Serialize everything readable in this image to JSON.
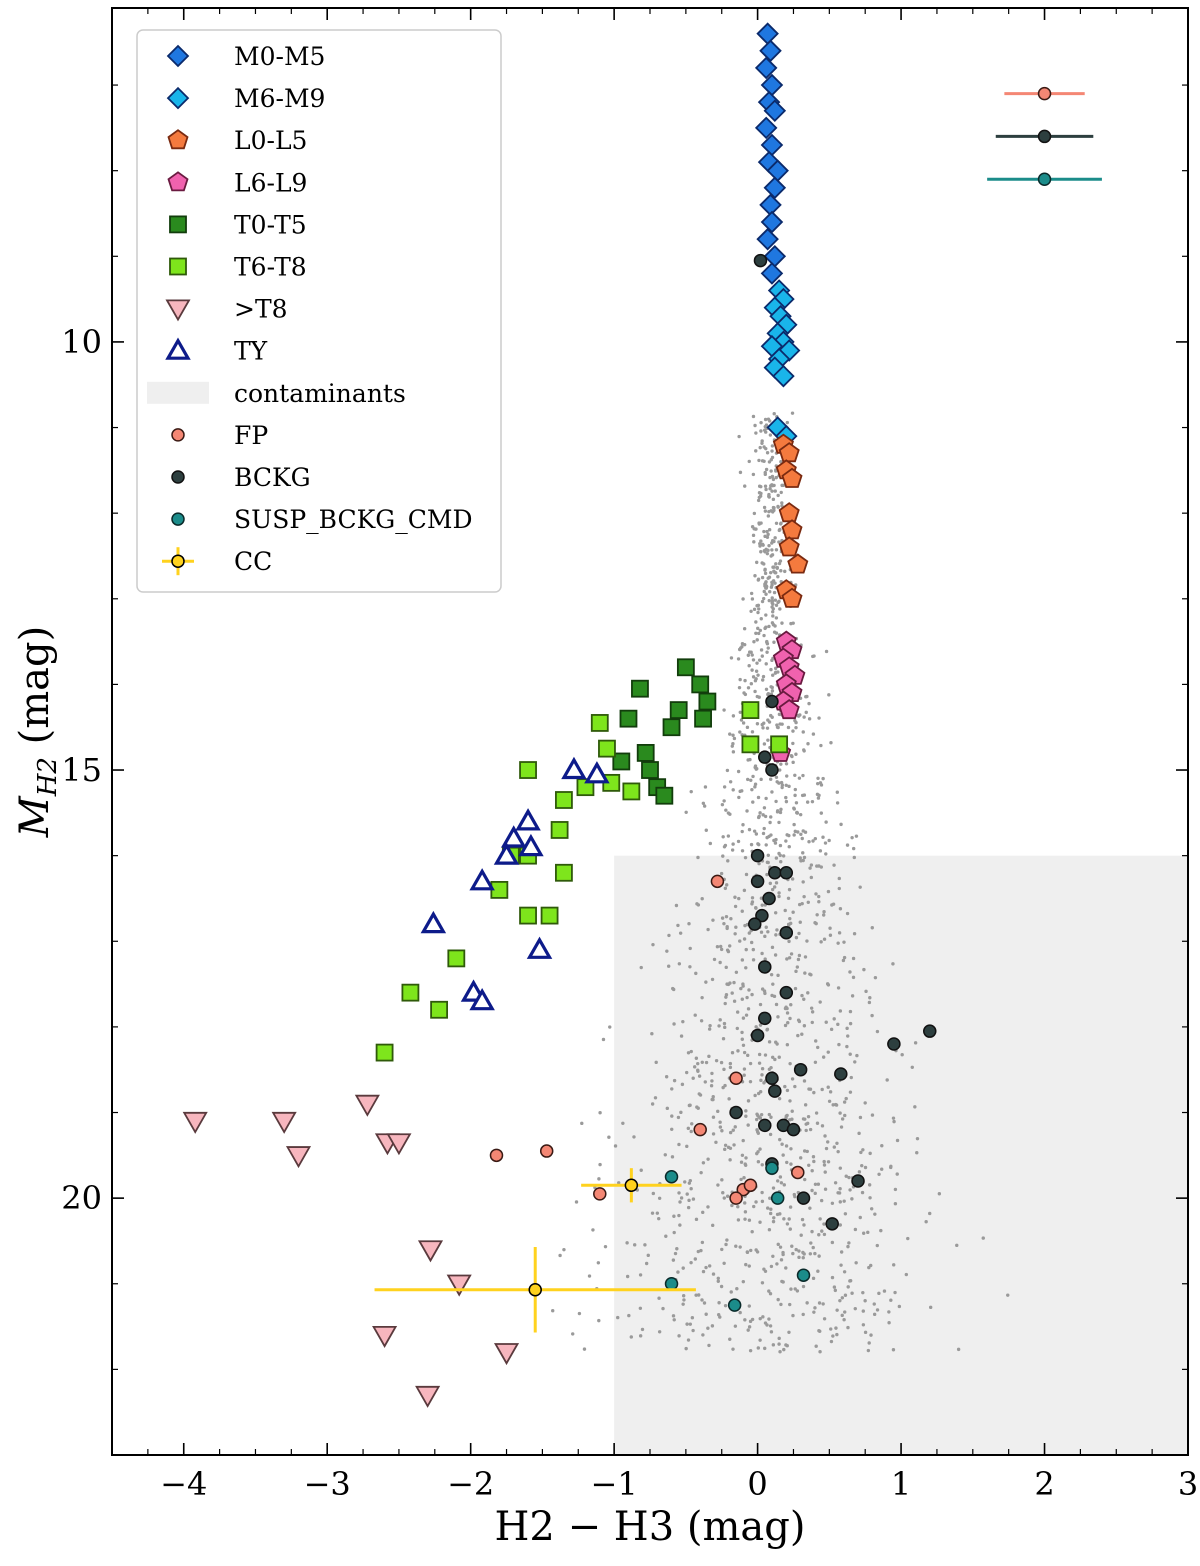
{
  "chart_data": {
    "type": "scatter",
    "xlabel": "H2 − H3 (mag)",
    "ylabel": "M_H2 (mag)",
    "xlim": [
      -4.5,
      3
    ],
    "ylim": [
      23.0,
      6.1
    ],
    "y_inverted": true,
    "x_ticks": [
      -4,
      -3,
      -2,
      -1,
      0,
      1,
      2,
      3
    ],
    "x_tick_labels": [
      "−4",
      "−3",
      "−2",
      "−1",
      "0",
      "1",
      "2",
      "3"
    ],
    "y_ticks": [
      10,
      15,
      20
    ],
    "y_tick_labels": [
      "10",
      "15",
      "20"
    ],
    "grid": false,
    "legend_position": "top-left",
    "contaminant_region": {
      "label": "contaminants",
      "x": [
        -1.0,
        3.0
      ],
      "y": [
        16.0,
        23.0
      ]
    },
    "error_bar_reference": [
      {
        "series": "FP",
        "x": 2.0,
        "y": 7.1,
        "xerr": 0.28
      },
      {
        "series": "BCKG",
        "x": 2.0,
        "y": 7.6,
        "xerr": 0.34
      },
      {
        "series": "SUSP_BCKG_CMD",
        "x": 2.0,
        "y": 8.1,
        "xerr": 0.4
      }
    ],
    "series": [
      {
        "name": "M0-M5",
        "marker": "diamond",
        "color": "#1f77e0",
        "edge": "#0b2a6b",
        "points": [
          [
            0.07,
            6.4
          ],
          [
            0.09,
            6.6
          ],
          [
            0.06,
            6.8
          ],
          [
            0.1,
            7.0
          ],
          [
            0.08,
            7.2
          ],
          [
            0.12,
            7.3
          ],
          [
            0.06,
            7.5
          ],
          [
            0.1,
            7.7
          ],
          [
            0.08,
            7.9
          ],
          [
            0.14,
            8.0
          ],
          [
            0.12,
            8.2
          ],
          [
            0.09,
            8.4
          ],
          [
            0.1,
            8.6
          ],
          [
            0.07,
            8.8
          ],
          [
            0.12,
            9.0
          ],
          [
            0.1,
            9.2
          ]
        ]
      },
      {
        "name": "M6-M9",
        "marker": "diamond",
        "color": "#19b5ea",
        "edge": "#0b2a6b",
        "points": [
          [
            0.15,
            9.4
          ],
          [
            0.18,
            9.5
          ],
          [
            0.12,
            9.6
          ],
          [
            0.16,
            9.7
          ],
          [
            0.2,
            9.8
          ],
          [
            0.14,
            9.9
          ],
          [
            0.18,
            10.0
          ],
          [
            0.1,
            10.05
          ],
          [
            0.22,
            10.1
          ],
          [
            0.15,
            10.2
          ],
          [
            0.12,
            10.3
          ],
          [
            0.18,
            10.4
          ],
          [
            0.14,
            11.0
          ],
          [
            0.2,
            11.1
          ]
        ]
      },
      {
        "name": "L0-L5",
        "marker": "pentagon",
        "color": "#f47a3e",
        "edge": "#7a2a10",
        "points": [
          [
            0.18,
            11.2
          ],
          [
            0.22,
            11.3
          ],
          [
            0.2,
            11.5
          ],
          [
            0.24,
            11.6
          ],
          [
            0.22,
            12.0
          ],
          [
            0.24,
            12.2
          ],
          [
            0.22,
            12.4
          ],
          [
            0.28,
            12.6
          ],
          [
            0.2,
            12.9
          ],
          [
            0.24,
            13.0
          ]
        ]
      },
      {
        "name": "L6-L9",
        "marker": "pentagon",
        "color": "#f062ae",
        "edge": "#6a1a40",
        "points": [
          [
            0.2,
            13.5
          ],
          [
            0.24,
            13.6
          ],
          [
            0.18,
            13.7
          ],
          [
            0.22,
            13.8
          ],
          [
            0.26,
            13.9
          ],
          [
            0.2,
            14.0
          ],
          [
            0.24,
            14.1
          ],
          [
            0.18,
            14.2
          ],
          [
            0.22,
            14.3
          ],
          [
            0.16,
            14.8
          ]
        ]
      },
      {
        "name": "T0-T5",
        "marker": "square",
        "color": "#2a8a1e",
        "edge": "#123d0c",
        "points": [
          [
            -0.5,
            13.8
          ],
          [
            -0.82,
            14.05
          ],
          [
            -0.4,
            14.0
          ],
          [
            -0.35,
            14.2
          ],
          [
            -0.38,
            14.4
          ],
          [
            -0.55,
            14.3
          ],
          [
            -0.6,
            14.5
          ],
          [
            -0.78,
            14.8
          ],
          [
            -0.9,
            14.4
          ],
          [
            -0.95,
            14.9
          ],
          [
            -0.75,
            15.0
          ],
          [
            -0.7,
            15.2
          ],
          [
            -0.65,
            15.3
          ]
        ]
      },
      {
        "name": "T6-T8",
        "marker": "square",
        "color": "#7ee51c",
        "edge": "#2f5a0a",
        "points": [
          [
            -1.1,
            14.45
          ],
          [
            -1.05,
            14.75
          ],
          [
            -1.02,
            15.15
          ],
          [
            -0.88,
            15.25
          ],
          [
            -1.2,
            15.2
          ],
          [
            -1.35,
            15.35
          ],
          [
            -1.6,
            15.0
          ],
          [
            -1.38,
            15.7
          ],
          [
            -1.35,
            16.2
          ],
          [
            -1.6,
            16.0
          ],
          [
            -1.72,
            16.0
          ],
          [
            -1.8,
            16.4
          ],
          [
            -1.6,
            16.7
          ],
          [
            -1.45,
            16.7
          ],
          [
            -2.1,
            17.2
          ],
          [
            -2.22,
            17.8
          ],
          [
            -2.42,
            17.6
          ],
          [
            -2.6,
            18.3
          ],
          [
            -0.05,
            14.3
          ],
          [
            -0.05,
            14.7
          ],
          [
            0.15,
            14.7
          ]
        ]
      },
      {
        "name": ">T8",
        "marker": "triangle-down",
        "color": "#f7b6be",
        "edge": "#5a3a3d",
        "points": [
          [
            -3.92,
            19.1
          ],
          [
            -3.3,
            19.1
          ],
          [
            -3.2,
            19.5
          ],
          [
            -2.72,
            18.9
          ],
          [
            -2.58,
            19.35
          ],
          [
            -2.5,
            19.35
          ],
          [
            -2.28,
            20.6
          ],
          [
            -2.08,
            21.0
          ],
          [
            -2.6,
            21.6
          ],
          [
            -1.75,
            21.8
          ],
          [
            -2.3,
            22.3
          ]
        ]
      },
      {
        "name": "TY",
        "marker": "triangle-up",
        "color": "#ffffff",
        "edge": "#0d1b8a",
        "points": [
          [
            -1.28,
            15.0
          ],
          [
            -1.12,
            15.05
          ],
          [
            -1.6,
            15.6
          ],
          [
            -1.7,
            15.8
          ],
          [
            -1.58,
            15.9
          ],
          [
            -1.75,
            16.0
          ],
          [
            -1.92,
            16.3
          ],
          [
            -2.26,
            16.8
          ],
          [
            -1.52,
            17.1
          ],
          [
            -1.98,
            17.6
          ],
          [
            -1.92,
            17.7
          ]
        ]
      },
      {
        "name": "FP",
        "marker": "circle",
        "color": "#f48774",
        "edge": "#3a1a14",
        "points": [
          [
            -0.28,
            16.3
          ],
          [
            -0.15,
            18.6
          ],
          [
            -0.4,
            19.2
          ],
          [
            -1.82,
            19.5
          ],
          [
            -1.47,
            19.45
          ],
          [
            -1.1,
            19.95
          ],
          [
            -0.1,
            19.9
          ],
          [
            -0.05,
            19.85
          ],
          [
            0.28,
            19.7
          ],
          [
            -0.15,
            20.0
          ]
        ]
      },
      {
        "name": "BCKG",
        "marker": "circle",
        "color": "#2d3f3f",
        "edge": "#111",
        "points": [
          [
            0.02,
            9.05
          ],
          [
            0.1,
            14.2
          ],
          [
            0.05,
            14.85
          ],
          [
            0.1,
            15.0
          ],
          [
            0.0,
            16.0
          ],
          [
            0.12,
            16.2
          ],
          [
            0.2,
            16.2
          ],
          [
            0.0,
            16.3
          ],
          [
            0.08,
            16.5
          ],
          [
            0.03,
            16.7
          ],
          [
            -0.02,
            16.8
          ],
          [
            0.2,
            16.9
          ],
          [
            0.05,
            17.3
          ],
          [
            0.2,
            17.6
          ],
          [
            0.05,
            17.9
          ],
          [
            0.0,
            18.1
          ],
          [
            1.2,
            18.05
          ],
          [
            0.95,
            18.2
          ],
          [
            0.3,
            18.5
          ],
          [
            0.58,
            18.55
          ],
          [
            0.1,
            18.6
          ],
          [
            0.12,
            18.75
          ],
          [
            -0.15,
            19.0
          ],
          [
            0.05,
            19.15
          ],
          [
            0.18,
            19.15
          ],
          [
            0.25,
            19.2
          ],
          [
            0.1,
            19.6
          ],
          [
            0.7,
            19.8
          ],
          [
            0.32,
            20.0
          ],
          [
            0.52,
            20.3
          ]
        ]
      },
      {
        "name": "SUSP_BCKG_CMD",
        "marker": "circle",
        "color": "#1b8c8a",
        "edge": "#0a2a2a",
        "points": [
          [
            -0.6,
            19.75
          ],
          [
            0.1,
            19.65
          ],
          [
            0.14,
            20.0
          ],
          [
            0.32,
            20.9
          ],
          [
            -0.6,
            21.0
          ],
          [
            -0.16,
            21.25
          ]
        ]
      },
      {
        "name": "CC",
        "marker": "circle",
        "color": "#ffd21e",
        "edge": "#000",
        "error_color": "#ffd21e",
        "points": [
          [
            -0.88,
            19.85,
            0.35,
            0.2
          ],
          [
            -1.55,
            21.07,
            1.12,
            0.5
          ]
        ]
      }
    ]
  },
  "legend": {
    "items": [
      {
        "label": "M0-M5",
        "series": "M0-M5"
      },
      {
        "label": "M6-M9",
        "series": "M6-M9"
      },
      {
        "label": "L0-L5",
        "series": "L0-L5"
      },
      {
        "label": "L6-L9",
        "series": "L6-L9"
      },
      {
        "label": "T0-T5",
        "series": "T0-T5"
      },
      {
        "label": "T6-T8",
        "series": "T6-T8"
      },
      {
        "label": ">T8",
        "series": ">T8"
      },
      {
        "label": "TY",
        "series": "TY"
      },
      {
        "label": "contaminants",
        "series": "contaminants"
      },
      {
        "label": "FP",
        "series": "FP"
      },
      {
        "label": "BCKG",
        "series": "BCKG"
      },
      {
        "label": "SUSP_BCKG_CMD",
        "series": "SUSP_BCKG_CMD"
      },
      {
        "label": "CC",
        "series": "CC"
      }
    ]
  },
  "colors": {
    "background_dots": "#9a9a9a",
    "contaminant_fill": "#efefef",
    "fp_bar": "#f48774",
    "bckg_bar": "#2d3f3f",
    "susp_bar": "#1b8c8a"
  }
}
